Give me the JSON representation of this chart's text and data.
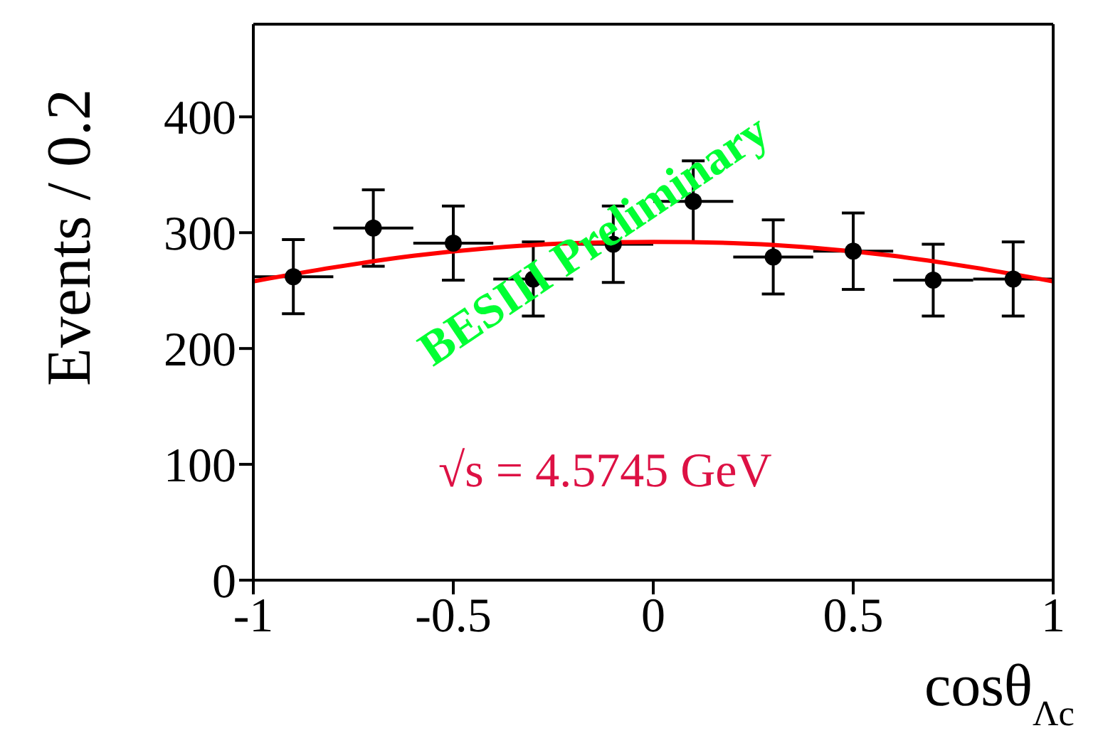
{
  "chart_data": {
    "type": "scatter",
    "xlabel": "cosθ$_{Λc}$",
    "ylabel": "Events / 0.2",
    "xlim": [
      -1,
      1
    ],
    "xticks": [
      -1,
      -0.5,
      0,
      0.5,
      1
    ],
    "ylim": [
      0,
      480
    ],
    "yticks": [
      0,
      100,
      200,
      300,
      400
    ],
    "series": [
      {
        "color": "#000000",
        "marker": "circle",
        "x": [
          -0.9,
          -0.7,
          -0.5,
          -0.3,
          -0.1,
          0.1,
          0.3,
          0.5,
          0.7,
          0.9
        ],
        "values": [
          262,
          304,
          291,
          260,
          290,
          327,
          279,
          284,
          259,
          260
        ],
        "errors": [
          32,
          33,
          32,
          32,
          33,
          35,
          32,
          33,
          31,
          32
        ],
        "xerrors": [
          0.1,
          0.1,
          0.1,
          0.1,
          0.1,
          0.1,
          0.1,
          0.1,
          0.1,
          0.1
        ]
      },
      {
        "type": "line",
        "color": "#ff0000",
        "marker": "none",
        "x": [
          -1,
          -0.8,
          -0.6,
          -0.4,
          -0.2,
          0,
          0.2,
          0.4,
          0.6,
          0.8,
          1
        ],
        "values": [
          258,
          270,
          280,
          287,
          291,
          292,
          291,
          287,
          280,
          270,
          258
        ]
      }
    ],
    "annotations": [
      "BESIII Preliminary",
      "√s = 4.5745 GeV"
    ]
  }
}
